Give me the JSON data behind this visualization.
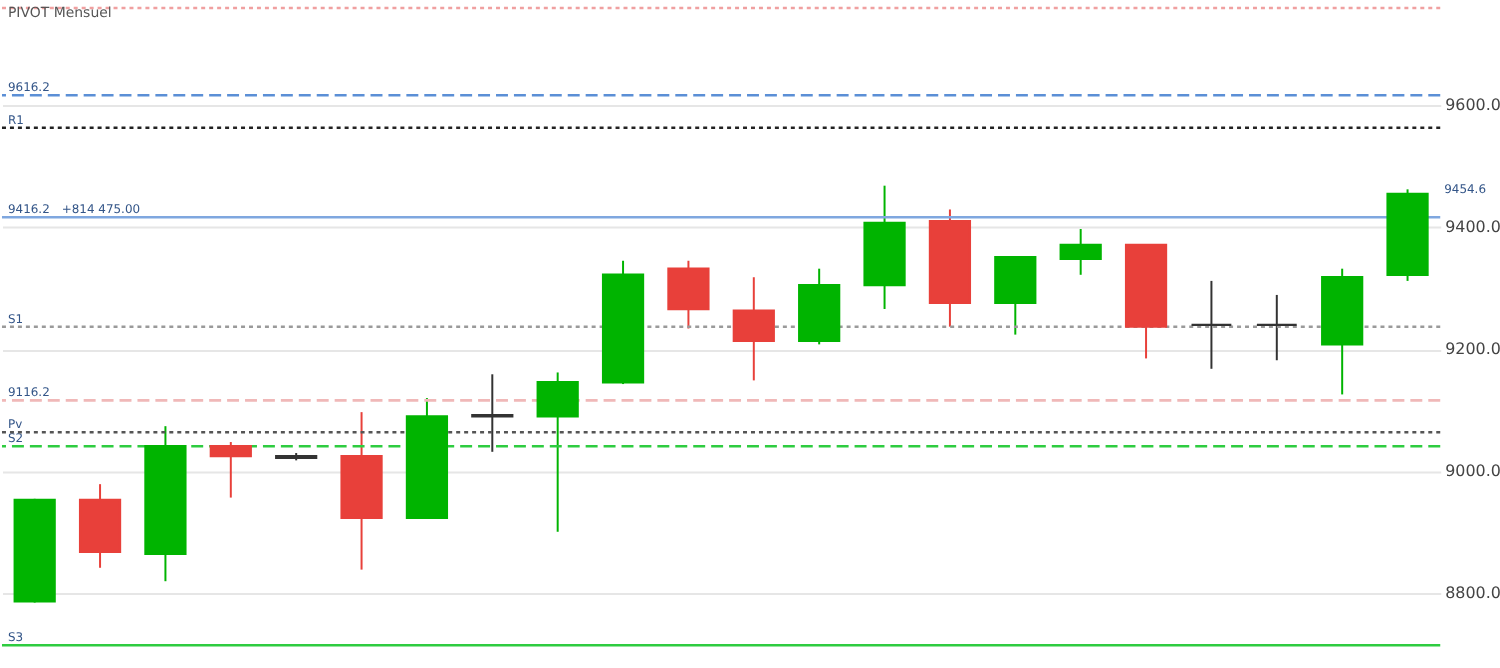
{
  "chart_data": {
    "type": "candlestick",
    "title": "PIVOT Mensuel",
    "categories": [
      null,
      null,
      null,
      null,
      null,
      null,
      null,
      null,
      null,
      null,
      null,
      null,
      null,
      null,
      null,
      null,
      null,
      null,
      null,
      null,
      null,
      null
    ],
    "ohlc": [
      [
        8787,
        8955,
        8785,
        8953
      ],
      [
        8953,
        8979,
        8842,
        8868
      ],
      [
        8865,
        9074,
        8820,
        9041
      ],
      [
        9041,
        9048,
        8957,
        9025
      ],
      [
        9025,
        9030,
        9018,
        9022
      ],
      [
        9025,
        9097,
        8839,
        8924
      ],
      [
        8924,
        9120,
        8924,
        9090
      ],
      [
        9090,
        9159,
        9032,
        9092
      ],
      [
        9090,
        9162,
        8901,
        9146
      ],
      [
        9146,
        9345,
        9143,
        9322
      ],
      [
        9332,
        9345,
        9234,
        9266
      ],
      [
        9263,
        9318,
        9149,
        9214
      ],
      [
        9214,
        9332,
        9208,
        9305
      ],
      [
        9305,
        9468,
        9266,
        9407
      ],
      [
        9410,
        9429,
        9237,
        9276
      ],
      [
        9276,
        9351,
        9224,
        9351
      ],
      [
        9348,
        9397,
        9322,
        9371
      ],
      [
        9371,
        9371,
        9185,
        9237
      ],
      [
        9240,
        9312,
        9168,
        9240
      ],
      [
        9240,
        9289,
        9182,
        9240
      ],
      [
        9208,
        9332,
        9126,
        9318
      ],
      [
        9322,
        9462,
        9312,
        9454.6
      ]
    ],
    "colors": [
      "#00b400",
      "#e8403a",
      "#00b400",
      "#e8403a",
      "#333333",
      "#e8403a",
      "#00b400",
      "#333333",
      "#00b400",
      "#00b400",
      "#e8403a",
      "#e8403a",
      "#00b400",
      "#00b400",
      "#e8403a",
      "#00b400",
      "#00b400",
      "#e8403a",
      "#333333",
      "#333333",
      "#00b400",
      "#00b400"
    ],
    "ref_lines": [
      {
        "axis": "y",
        "value": 9759,
        "color": "#f0a0a0",
        "line_style": "dotted"
      },
      {
        "axis": "y",
        "value": 9563,
        "label": "R1",
        "color": "#222222",
        "line_style": "dotted"
      },
      {
        "axis": "y",
        "value": 9237,
        "label": "S1",
        "color": "#9a9a9a",
        "line_style": "dotted"
      },
      {
        "axis": "y",
        "value": 9041,
        "label": "S2",
        "color": "#2ecc40",
        "line_style": "dashed"
      },
      {
        "axis": "y",
        "value": 8715,
        "label": "S3",
        "color": "#2ecc40",
        "line_style": "solid"
      },
      {
        "axis": "y",
        "value": 9064,
        "label": "Pv",
        "color": "#555555",
        "line_style": "dotted"
      },
      {
        "axis": "y",
        "value": 9616.2,
        "label": "9616.2",
        "color": "#5b8fd6",
        "line_style": "dashed"
      },
      {
        "axis": "y",
        "value": 9416.2,
        "label": "9416.2",
        "color": "#7fa7df",
        "line_style": "solid"
      },
      {
        "axis": "y",
        "value": 9116.2,
        "label": "9116.2",
        "color": "#f0b8b8",
        "line_style": "dashed"
      }
    ],
    "annotations": [
      {
        "text": "+814 475.00",
        "y": 9416.2
      },
      "9454.6"
    ],
    "ylim": [
      8680,
      9770
    ],
    "yticks": [
      {
        "value": 8800,
        "label": "8800.0"
      },
      {
        "value": 9000,
        "label": "9000.0"
      },
      {
        "value": 9200,
        "label": "9200.0"
      },
      {
        "value": 9400,
        "label": "9400.0"
      },
      {
        "value": 9600,
        "label": "9600.0"
      }
    ],
    "grid": "y",
    "tick_labels": "y"
  }
}
